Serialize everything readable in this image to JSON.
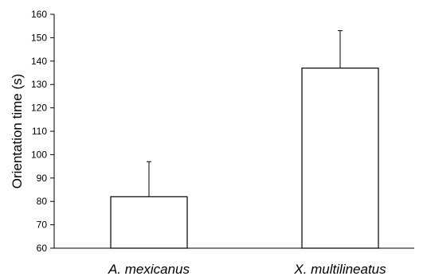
{
  "chart_data": {
    "type": "bar",
    "categories": [
      "A. mexicanus",
      "X. multilineatus"
    ],
    "values": [
      82,
      137
    ],
    "errors_upper": [
      97,
      153
    ],
    "ylabel": "Orientation time (s)",
    "xlabel": "",
    "title": "",
    "ylim": [
      60,
      160
    ],
    "yticks": [
      60,
      70,
      80,
      90,
      100,
      110,
      120,
      130,
      140,
      150,
      160
    ],
    "grid": false,
    "legend": "none",
    "bar_fill": "#ffffff",
    "bar_stroke": "#000000"
  }
}
